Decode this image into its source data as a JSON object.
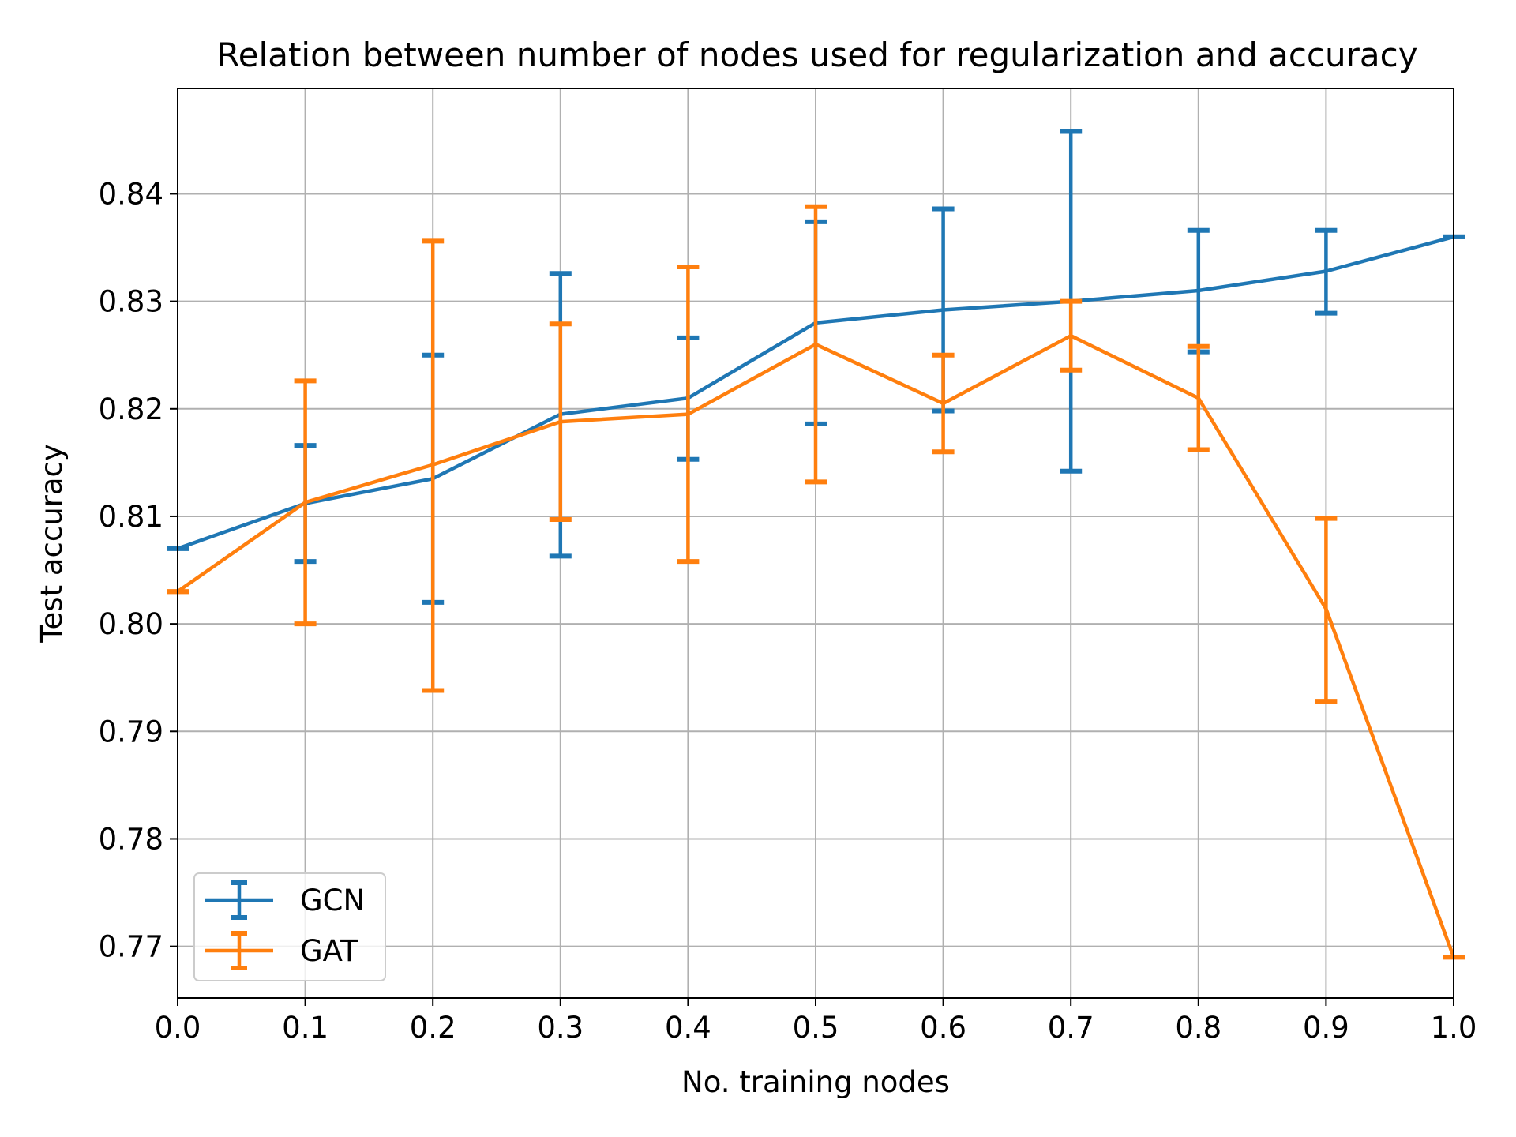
{
  "chart_data": {
    "type": "line",
    "title": "Relation between number of nodes used for regularization and accuracy",
    "xlabel": "No. training nodes",
    "ylabel": "Test accuracy",
    "xlim": [
      0.0,
      1.0
    ],
    "ylim": [
      0.7652,
      0.8498
    ],
    "xticks": [
      0.0,
      0.1,
      0.2,
      0.3,
      0.4,
      0.5,
      0.6,
      0.7,
      0.8,
      0.9,
      1.0
    ],
    "xtick_labels": [
      "0.0",
      "0.1",
      "0.2",
      "0.3",
      "0.4",
      "0.5",
      "0.6",
      "0.7",
      "0.8",
      "0.9",
      "1.0"
    ],
    "yticks": [
      0.77,
      0.78,
      0.79,
      0.8,
      0.81,
      0.82,
      0.83,
      0.84
    ],
    "ytick_labels": [
      "0.77",
      "0.78",
      "0.79",
      "0.80",
      "0.81",
      "0.82",
      "0.83",
      "0.84"
    ],
    "grid": true,
    "legend_position": "lower-left",
    "series": [
      {
        "name": "GCN",
        "color": "#1f77b4",
        "x": [
          0.0,
          0.1,
          0.2,
          0.3,
          0.4,
          0.5,
          0.6,
          0.7,
          0.8,
          0.9,
          1.0
        ],
        "y": [
          0.807,
          0.8112,
          0.8135,
          0.8195,
          0.821,
          0.828,
          0.8292,
          0.83,
          0.831,
          0.8328,
          0.836
        ],
        "err_low": [
          0.807,
          0.8058,
          0.802,
          0.8063,
          0.8153,
          0.8186,
          0.8198,
          0.8142,
          0.8253,
          0.8289,
          0.836
        ],
        "err_high": [
          0.807,
          0.8166,
          0.825,
          0.8326,
          0.8266,
          0.8374,
          0.8386,
          0.8458,
          0.8366,
          0.8366,
          0.836
        ]
      },
      {
        "name": "GAT",
        "color": "#ff7f0e",
        "x": [
          0.0,
          0.1,
          0.2,
          0.3,
          0.4,
          0.5,
          0.6,
          0.7,
          0.8,
          0.9,
          1.0
        ],
        "y": [
          0.803,
          0.8113,
          0.8148,
          0.8188,
          0.8195,
          0.826,
          0.8205,
          0.8268,
          0.821,
          0.8014,
          0.769
        ],
        "err_low": [
          0.803,
          0.8,
          0.7938,
          0.8097,
          0.8058,
          0.8132,
          0.816,
          0.8236,
          0.8162,
          0.7928,
          0.769
        ],
        "err_high": [
          0.803,
          0.8226,
          0.8356,
          0.8279,
          0.8332,
          0.8388,
          0.825,
          0.83,
          0.8258,
          0.8098,
          0.769
        ]
      }
    ]
  }
}
